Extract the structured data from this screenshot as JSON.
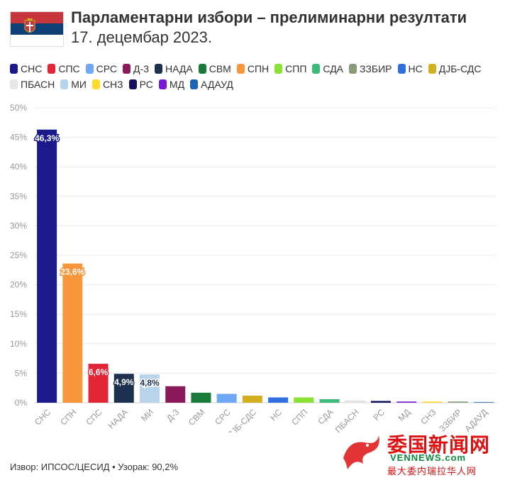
{
  "header": {
    "title": "Парламентарни избори – прелиминарни резултати",
    "subtitle": "17. децембар 2023."
  },
  "legend": [
    {
      "label": "СНС",
      "color": "#1a1a8c"
    },
    {
      "label": "СПС",
      "color": "#e32636"
    },
    {
      "label": "СРС",
      "color": "#6fa8f5"
    },
    {
      "label": "Д-3",
      "color": "#8b1a5a"
    },
    {
      "label": "НАДА",
      "color": "#1e3050"
    },
    {
      "label": "СВМ",
      "color": "#1a7a3a"
    },
    {
      "label": "СПН",
      "color": "#f7963a"
    },
    {
      "label": "СПП",
      "color": "#8ae234"
    },
    {
      "label": "СДА",
      "color": "#3dbb7a"
    },
    {
      "label": "ЗЗБИР",
      "color": "#8a9a7a"
    },
    {
      "label": "НС",
      "color": "#2f6fe0"
    },
    {
      "label": "ДЈБ-СДС",
      "color": "#d4b020"
    },
    {
      "label": "ПБАСН",
      "color": "#e6e6e6"
    },
    {
      "label": "МИ",
      "color": "#b8d4ea"
    },
    {
      "label": "СНЗ",
      "color": "#ffd92e"
    },
    {
      "label": "РС",
      "color": "#15105e"
    },
    {
      "label": "МД",
      "color": "#7a1ad8"
    },
    {
      "label": "АДАУД",
      "color": "#1e64b4"
    }
  ],
  "chart_data": {
    "type": "bar",
    "categories": [
      "СНС",
      "СПН",
      "СПС",
      "НАДА",
      "МИ",
      "Д-3",
      "СВМ",
      "СРС",
      "ДЈБ-СДС",
      "НС",
      "СПП",
      "СДА",
      "ПБАСН",
      "РС",
      "МД",
      "СНЗ",
      "ЗЗБИР",
      "АДАУД"
    ],
    "values": [
      46.3,
      23.6,
      6.6,
      4.9,
      4.8,
      2.8,
      1.7,
      1.5,
      1.2,
      0.9,
      0.9,
      0.6,
      0.3,
      0.3,
      0.2,
      0.2,
      0.2,
      0.1
    ],
    "data_labels": [
      "46,3%",
      "23,6%",
      "6,6%",
      "4,9%",
      "4,8%",
      "",
      "",
      "",
      "",
      "",
      "",
      "",
      "",
      "",
      "",
      "",
      "",
      ""
    ],
    "colors": [
      "#1a1a8c",
      "#f7963a",
      "#e32636",
      "#1e3050",
      "#b8d4ea",
      "#8b1a5a",
      "#1a7a3a",
      "#6fa8f5",
      "#d4b020",
      "#2f6fe0",
      "#8ae234",
      "#3dbb7a",
      "#e6e6e6",
      "#15105e",
      "#7a1ad8",
      "#ffd92e",
      "#8a9a7a",
      "#1e64b4"
    ],
    "yticks": [
      "0%",
      "5%",
      "10%",
      "15%",
      "20%",
      "25%",
      "30%",
      "35%",
      "40%",
      "45%",
      "50%"
    ],
    "ylim": [
      0,
      50
    ],
    "grid": true,
    "legend_position": "top"
  },
  "source": "Извор: ИПСОС/ЦЕСИД • Узорак: 90,2%",
  "watermark": {
    "big": "委国新闻网",
    "mid": "VENNEWS.com",
    "small": "最大委内瑞拉华人网"
  }
}
